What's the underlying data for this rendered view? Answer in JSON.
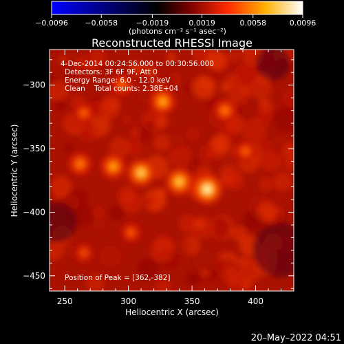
{
  "chart_data": {
    "type": "heatmap",
    "title": "Reconstructed RHESSI Image",
    "xlabel": "Heliocentric X (arcsec)",
    "ylabel": "Heliocentric Y (arcsec)",
    "xlim": [
      238,
      430
    ],
    "ylim": [
      -462,
      -272
    ],
    "x_ticks": [
      250,
      300,
      350,
      400
    ],
    "x_tick_labels": [
      "250",
      "300",
      "350",
      "400"
    ],
    "y_ticks": [
      -300,
      -350,
      -400,
      -450
    ],
    "y_tick_labels": [
      "−300",
      "−350",
      "−400",
      "−450"
    ],
    "colorbar": {
      "range": [
        -0.0096,
        0.0096
      ],
      "ticks": [
        -0.0096,
        -0.0058,
        -0.0019,
        0.0019,
        0.0058,
        0.0096
      ],
      "tick_labels": [
        "−0.0096",
        "−0.0058",
        "−0.0019",
        "0.0019",
        "0.0058",
        "0.0096"
      ],
      "units": "(photons cm⁻² s⁻¹ asec⁻²)",
      "colormap": [
        "#0000ff",
        "#000000",
        "#7a0000",
        "#ff2a00",
        "#ffb000",
        "#ffffff"
      ]
    },
    "annotations": [
      "4-Dec-2014 00:24:56.000 to 00:30:56.000",
      "Detectors: 3F 6F 9F, Att 0",
      "Energy Range: 6.0 - 12.0 keV",
      "Clean    Total counts: 2.38E+04",
      "Position of Peak = [362,-382]"
    ],
    "sources": [
      {
        "x": 362,
        "y": -382,
        "value": 0.0096
      },
      {
        "x": 340,
        "y": -376,
        "value": 0.0082
      },
      {
        "x": 310,
        "y": -369,
        "value": 0.0084
      },
      {
        "x": 288,
        "y": -364,
        "value": 0.007
      },
      {
        "x": 262,
        "y": -362,
        "value": 0.006
      },
      {
        "x": 327,
        "y": -313,
        "value": 0.0072
      },
      {
        "x": 376,
        "y": -320,
        "value": 0.0058
      },
      {
        "x": 392,
        "y": -352,
        "value": 0.005
      },
      {
        "x": 295,
        "y": -300,
        "value": 0.0052
      },
      {
        "x": 265,
        "y": -322,
        "value": 0.005
      },
      {
        "x": 302,
        "y": -416,
        "value": 0.0048
      },
      {
        "x": 265,
        "y": -432,
        "value": 0.0044
      }
    ]
  },
  "footer": {
    "timestamp": "20–May–2022 04:51"
  }
}
